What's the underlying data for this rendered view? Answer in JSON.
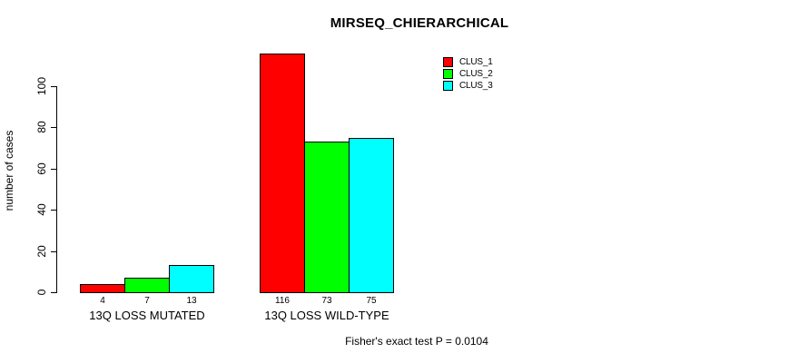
{
  "chart_data": {
    "type": "bar",
    "title": "MIRSEQ_CHIERARCHICAL",
    "xlabel": "",
    "ylabel": "number of cases",
    "ylim": [
      0,
      116
    ],
    "yticks": [
      0,
      20,
      40,
      60,
      80,
      100
    ],
    "grid": false,
    "legend_position": "top-right",
    "categories": [
      "13Q LOSS MUTATED",
      "13Q LOSS WILD-TYPE"
    ],
    "series": [
      {
        "name": "CLUS_1",
        "color": "#FF0000",
        "values": [
          4,
          116
        ]
      },
      {
        "name": "CLUS_2",
        "color": "#00FF00",
        "values": [
          7,
          73
        ]
      },
      {
        "name": "CLUS_3",
        "color": "#00FFFF",
        "values": [
          13,
          75
        ]
      }
    ],
    "bar_value_labels": [
      [
        "4",
        "116"
      ],
      [
        "7",
        "73"
      ],
      [
        "13",
        "75"
      ]
    ],
    "annotation": "Fisher's exact test P = 0.0104"
  }
}
